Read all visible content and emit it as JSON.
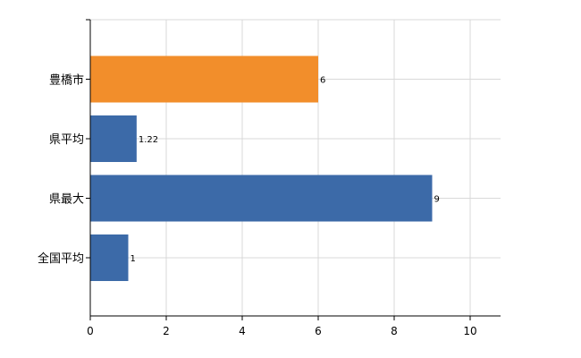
{
  "chart_data": {
    "type": "bar",
    "orientation": "horizontal",
    "categories": [
      "豊橋市",
      "県平均",
      "県最大",
      "全国平均"
    ],
    "values": [
      6,
      1.22,
      9,
      1
    ],
    "data_labels": [
      "6",
      "1.22",
      "9",
      "1"
    ],
    "bar_colors": [
      "#f28e2b",
      "#3c6aa8",
      "#3c6aa8",
      "#3c6aa8"
    ],
    "title": "",
    "xlabel": "",
    "ylabel": "",
    "xlim": [
      0,
      10.8
    ],
    "x_ticks": [
      0,
      2,
      4,
      6,
      8,
      10
    ],
    "grid": true,
    "legend": "none"
  }
}
